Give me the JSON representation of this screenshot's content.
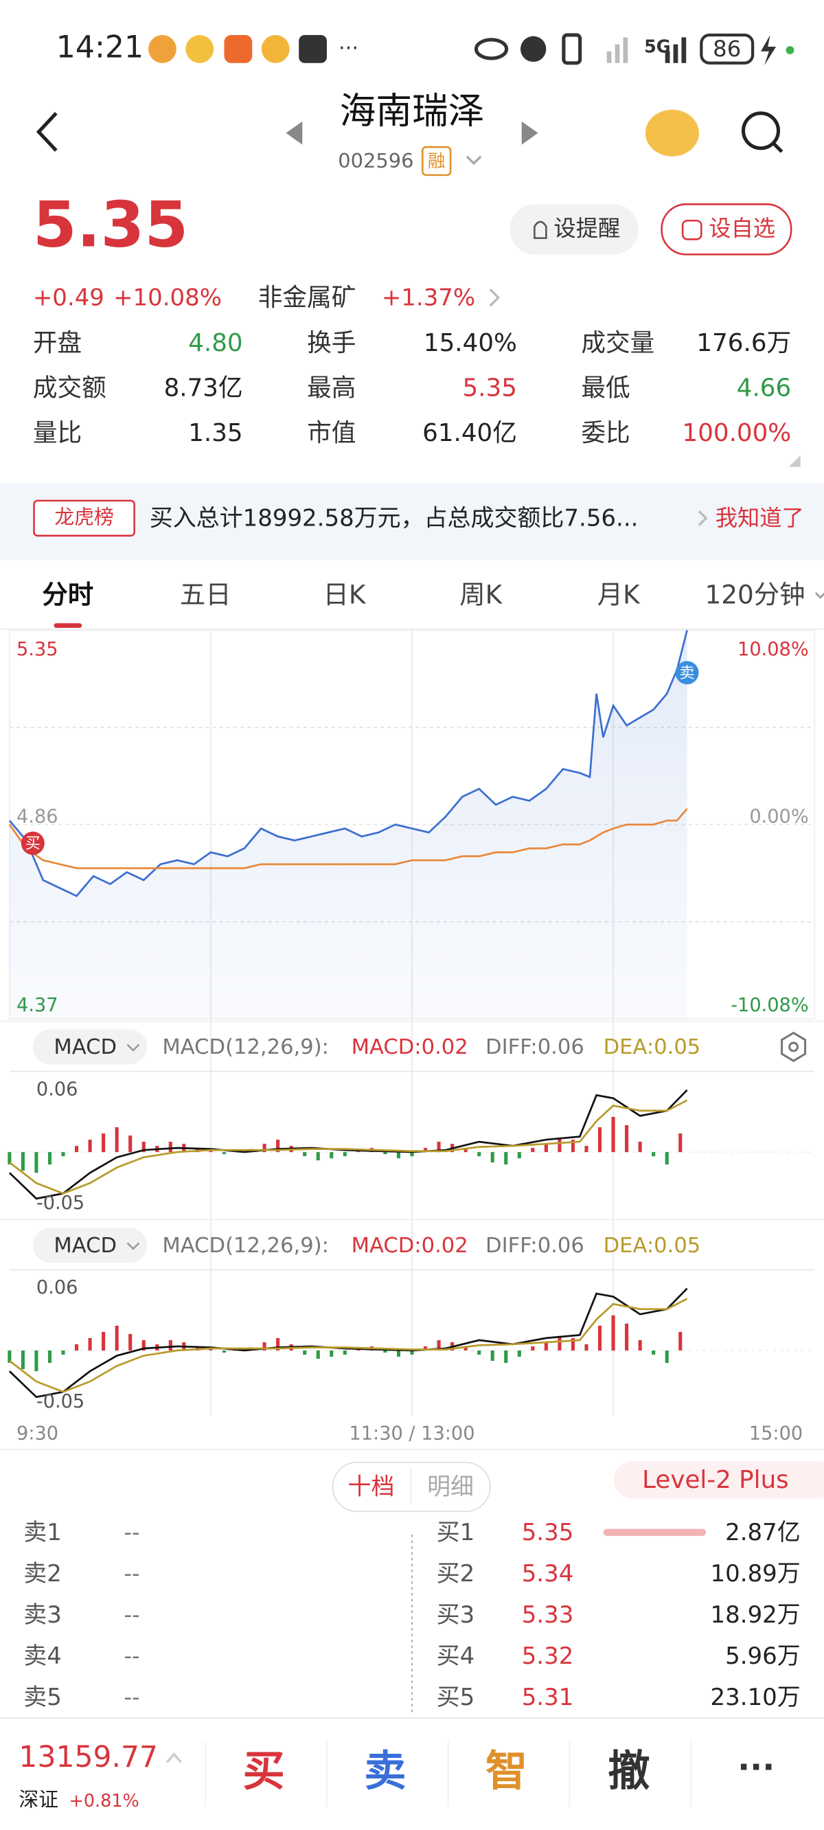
{
  "status": {
    "time": "14:21",
    "network": "5G",
    "battery": "86"
  },
  "header": {
    "title": "海南瑞泽",
    "code": "002596",
    "tag": "融"
  },
  "quote": {
    "price": "5.35",
    "change": "+0.49",
    "change_pct": "+10.08%",
    "sector": "非金属矿",
    "sector_pct": "+1.37%",
    "buttons": [
      "设提醒",
      "设自选"
    ]
  },
  "stats": [
    {
      "label": "开盘",
      "value": "4.80",
      "color": "#2f9a47"
    },
    {
      "label": "换手",
      "value": "15.40%",
      "color": "#222222"
    },
    {
      "label": "成交量",
      "value": "176.6万",
      "color": "#222222"
    },
    {
      "label": "成交额",
      "value": "8.73亿",
      "color": "#222222"
    },
    {
      "label": "最高",
      "value": "5.35",
      "color": "#d8343c"
    },
    {
      "label": "最低",
      "value": "4.66",
      "color": "#2f9a47"
    },
    {
      "label": "量比",
      "value": "1.35",
      "color": "#222222"
    },
    {
      "label": "市值",
      "value": "61.40亿",
      "color": "#222222"
    },
    {
      "label": "委比",
      "value": "100.00%",
      "color": "#d8343c"
    }
  ],
  "banner": {
    "tag": "龙虎榜",
    "text": "买入总计18992.58万元，占总成交额比7.56...",
    "action": "我知道了"
  },
  "tabs": [
    "分时",
    "五日",
    "日K",
    "周K",
    "月K",
    "120分钟"
  ],
  "chart_data": [
    {
      "type": "line",
      "x": [
        0,
        5,
        10,
        15,
        20,
        25,
        30,
        35,
        40,
        45,
        50,
        55,
        60,
        65,
        70,
        75,
        80,
        85,
        90,
        95,
        100,
        105,
        110,
        115,
        120,
        125,
        130,
        135,
        140,
        145,
        150,
        155,
        160,
        165,
        170,
        173,
        175,
        177,
        180,
        184,
        188,
        192,
        196,
        199,
        202
      ],
      "series": [
        {
          "color": "#3b6fd0",
          "values": [
            4.87,
            4.82,
            4.72,
            4.7,
            4.68,
            4.73,
            4.71,
            4.74,
            4.72,
            4.76,
            4.77,
            4.76,
            4.79,
            4.78,
            4.8,
            4.85,
            4.83,
            4.82,
            4.83,
            4.84,
            4.85,
            4.83,
            4.84,
            4.86,
            4.85,
            4.84,
            4.88,
            4.93,
            4.95,
            4.91,
            4.93,
            4.92,
            4.95,
            5.0,
            4.99,
            4.98,
            5.19,
            5.08,
            5.16,
            5.11,
            5.13,
            5.15,
            5.19,
            5.25,
            5.35
          ]
        },
        {
          "color": "#e8883a",
          "values": [
            4.86,
            4.8,
            4.77,
            4.76,
            4.75,
            4.75,
            4.75,
            4.75,
            4.75,
            4.75,
            4.75,
            4.75,
            4.75,
            4.75,
            4.75,
            4.76,
            4.76,
            4.76,
            4.76,
            4.76,
            4.76,
            4.76,
            4.76,
            4.76,
            4.77,
            4.77,
            4.77,
            4.78,
            4.78,
            4.79,
            4.79,
            4.8,
            4.8,
            4.81,
            4.81,
            4.82,
            4.83,
            4.84,
            4.85,
            4.86,
            4.86,
            4.86,
            4.87,
            4.87,
            4.9
          ]
        }
      ],
      "xlim": [
        0,
        240
      ],
      "xticks": [
        {
          "value": 0,
          "label": "9:30"
        },
        {
          "value": 120,
          "label": "11:30 / 13:00"
        },
        {
          "value": 240,
          "label": "15:00"
        }
      ],
      "ylim": [
        4.37,
        5.35
      ],
      "yticks": [
        5.35,
        4.86,
        4.37
      ],
      "y2lim": [
        -10.08,
        10.08
      ],
      "y2ticks": [
        {
          "value": 10.08,
          "label": "10.08%"
        },
        {
          "value": 0,
          "label": "0.00%"
        },
        {
          "value": -10.08,
          "label": "-10.08%"
        }
      ],
      "markers": [
        {
          "label": "买",
          "x": 0,
          "y": 4.86
        },
        {
          "label": "卖",
          "x": 202,
          "y": 5.29
        }
      ]
    },
    {
      "type": "macd",
      "indicator": "MACD",
      "params": "MACD(12,26,9):",
      "readings": [
        {
          "text": "MACD:0.02",
          "color": "#d8343c"
        },
        {
          "text": "DIFF:0.06",
          "color": "#777777"
        },
        {
          "text": "DEA:0.05",
          "color": "#b89a2a"
        }
      ],
      "xlim": [
        0,
        240
      ],
      "ylim": [
        -0.063,
        0.078
      ],
      "yticks": [
        0.06,
        -0.05
      ],
      "up_color": "#d8343c",
      "down_color": "#2f9a47",
      "x": [
        0,
        4,
        8,
        12,
        16,
        20,
        24,
        28,
        32,
        36,
        40,
        44,
        48,
        52,
        56,
        60,
        64,
        68,
        72,
        76,
        80,
        84,
        88,
        92,
        96,
        100,
        104,
        108,
        112,
        116,
        120,
        124,
        128,
        132,
        136,
        140,
        144,
        148,
        152,
        156,
        160,
        164,
        168,
        172,
        176,
        180,
        184,
        188,
        192,
        196,
        200
      ],
      "values": [
        -0.012,
        -0.018,
        -0.02,
        -0.012,
        -0.004,
        0.006,
        0.012,
        0.018,
        0.024,
        0.016,
        0.01,
        0.006,
        0.01,
        0.008,
        0.003,
        0.001,
        -0.002,
        0.001,
        0.003,
        0.008,
        0.012,
        0.006,
        -0.004,
        -0.008,
        -0.006,
        -0.004,
        0.002,
        0.004,
        -0.002,
        -0.006,
        -0.004,
        0.004,
        0.01,
        0.008,
        0.004,
        -0.004,
        -0.01,
        -0.012,
        -0.006,
        0.004,
        0.008,
        0.014,
        0.012,
        0.006,
        0.024,
        0.034,
        0.026,
        0.01,
        -0.004,
        -0.012,
        0.018
      ],
      "lines": {
        "x": [
          0,
          8,
          16,
          24,
          32,
          40,
          50,
          60,
          70,
          80,
          90,
          100,
          110,
          120,
          130,
          140,
          150,
          160,
          170,
          175,
          180,
          188,
          196,
          202
        ],
        "series": [
          {
            "color": "#111111",
            "values": [
              -0.02,
              -0.045,
              -0.04,
              -0.02,
              -0.005,
              0.002,
              0.004,
              0.003,
              0.0,
              0.003,
              0.004,
              0.002,
              0.001,
              0.0,
              0.002,
              0.01,
              0.006,
              0.012,
              0.015,
              0.055,
              0.052,
              0.035,
              0.04,
              0.06
            ]
          },
          {
            "color": "#b89a2a",
            "values": [
              -0.01,
              -0.03,
              -0.04,
              -0.03,
              -0.015,
              -0.005,
              0.0,
              0.002,
              0.002,
              0.002,
              0.003,
              0.003,
              0.002,
              0.001,
              0.001,
              0.005,
              0.006,
              0.008,
              0.01,
              0.03,
              0.045,
              0.04,
              0.04,
              0.05
            ]
          }
        ]
      }
    }
  ],
  "book": {
    "tabs": [
      "十档",
      "明细"
    ],
    "level": "Level-2 Plus",
    "asks": [
      {
        "label": "卖1",
        "price": "--"
      },
      {
        "label": "卖2",
        "price": "--"
      },
      {
        "label": "卖3",
        "price": "--"
      },
      {
        "label": "卖4",
        "price": "--"
      },
      {
        "label": "卖5",
        "price": "--"
      }
    ],
    "bids": [
      {
        "label": "买1",
        "price": "5.35",
        "volume": "2.87亿"
      },
      {
        "label": "买2",
        "price": "5.34",
        "volume": "10.89万"
      },
      {
        "label": "买3",
        "price": "5.33",
        "volume": "18.92万"
      },
      {
        "label": "买4",
        "price": "5.32",
        "volume": "5.96万"
      },
      {
        "label": "买5",
        "price": "5.31",
        "volume": "23.10万"
      }
    ]
  },
  "footer": {
    "index": "13159.77",
    "index_name": "深证",
    "index_pct": "+0.81%",
    "actions": [
      {
        "text": "买",
        "color": "#d8343c"
      },
      {
        "text": "卖",
        "color": "#3a6fd8"
      },
      {
        "text": "智",
        "color": "#e0902a"
      },
      {
        "text": "撤",
        "color": "#333333"
      }
    ],
    "more": "···"
  }
}
